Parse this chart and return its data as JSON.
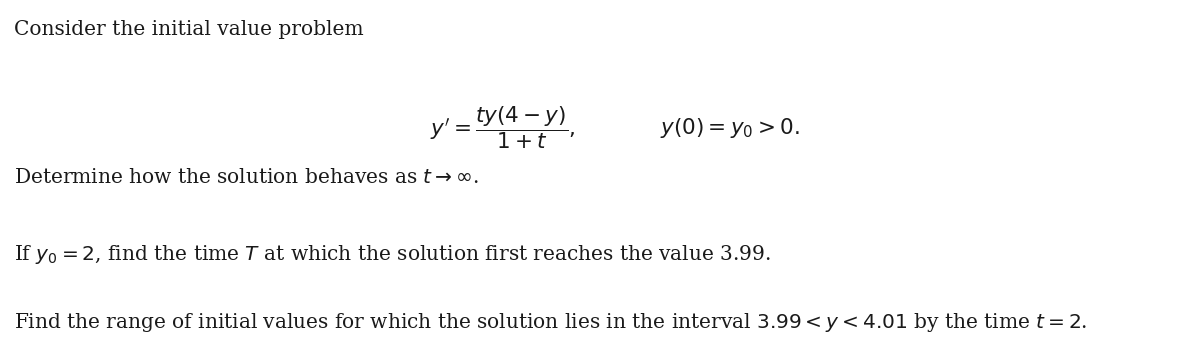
{
  "background_color": "#ffffff",
  "text_color": "#1a1a1a",
  "line1": "Consider the initial value problem",
  "line3": "Determine how the solution behaves as $t \\rightarrow \\infty$.",
  "line4": "If $y_0 = 2$, find the time $T$ at which the solution first reaches the value 3.99.",
  "line5": "Find the range of initial values for which the solution lies in the interval $3.99 < y < 4.01$ by the time $t = 2$.",
  "eq_text": "$y' = \\dfrac{ty(4-y)}{1+t},$",
  "eq_text2": "$y(0) = y_0 > 0.$",
  "fontsize": 14.5,
  "eq_fontsize": 15.5
}
